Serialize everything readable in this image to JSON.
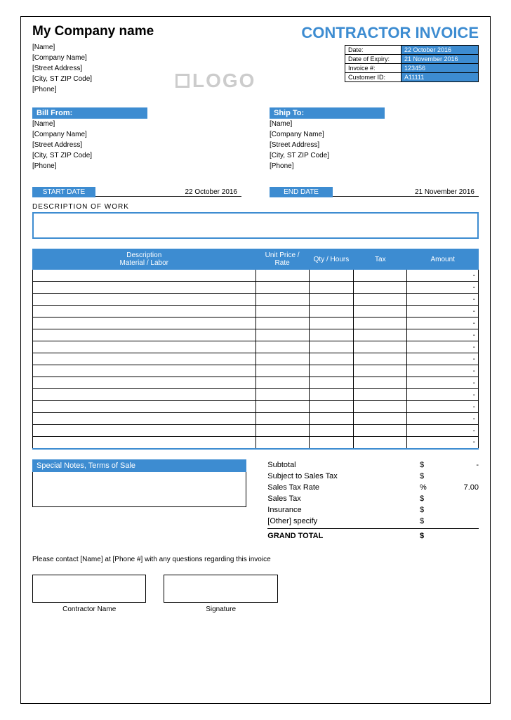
{
  "colors": {
    "primary": "#3d8cd1",
    "border": "#000000",
    "logo_placeholder": "#cccccc"
  },
  "company": {
    "name": "My Company name",
    "lines": [
      "[Name]",
      "[Company Name]",
      "[Street Address]",
      "[City, ST  ZIP Code]",
      "[Phone]"
    ]
  },
  "logo_text": "LOGO",
  "doc_title": "CONTRACTOR INVOICE",
  "meta": [
    {
      "label": "Date:",
      "value": "22 October 2016"
    },
    {
      "label": "Date of Expiry:",
      "value": "21 November 2016"
    },
    {
      "label": "Invoice #:",
      "value": "123456"
    },
    {
      "label": "Customer ID:",
      "value": "A11111"
    }
  ],
  "bill_from": {
    "header": "Bill From:",
    "lines": [
      "[Name]",
      "[Company Name]",
      "[Street Address]",
      "[City, ST  ZIP Code]",
      "[Phone]"
    ]
  },
  "ship_to": {
    "header": "Ship To:",
    "lines": [
      "[Name]",
      "[Company Name]",
      "[Street Address]",
      "[City, ST  ZIP Code]",
      "[Phone]"
    ]
  },
  "dates": {
    "start_label": "START DATE",
    "start_value": "22 October 2016",
    "end_label": "END DATE",
    "end_value": "21 November 2016"
  },
  "description_of_work_label": "DESCRIPTION OF WORK",
  "items_table": {
    "headers": [
      "Description\nMaterial / Labor",
      "Unit Price / Rate",
      "Qty / Hours",
      "Tax",
      "Amount"
    ],
    "row_count": 15,
    "amount_placeholder": "-"
  },
  "notes_header": "Special Notes, Terms of Sale",
  "totals": [
    {
      "label": "Subtotal",
      "sym": "$",
      "value": "-"
    },
    {
      "label": "Subject to Sales Tax",
      "sym": "$",
      "value": ""
    },
    {
      "label": "Sales Tax Rate",
      "sym": "%",
      "value": "7.00"
    },
    {
      "label": "Sales Tax",
      "sym": "$",
      "value": ""
    },
    {
      "label": "Insurance",
      "sym": "$",
      "value": ""
    },
    {
      "label": "[Other] specify",
      "sym": "$",
      "value": ""
    }
  ],
  "grand_total": {
    "label": "GRAND TOTAL",
    "sym": "$",
    "value": ""
  },
  "contact_note": "Please contact [Name] at [Phone #] with any questions regarding this invoice",
  "signatures": {
    "contractor": "Contractor Name",
    "signature": "Signature"
  }
}
